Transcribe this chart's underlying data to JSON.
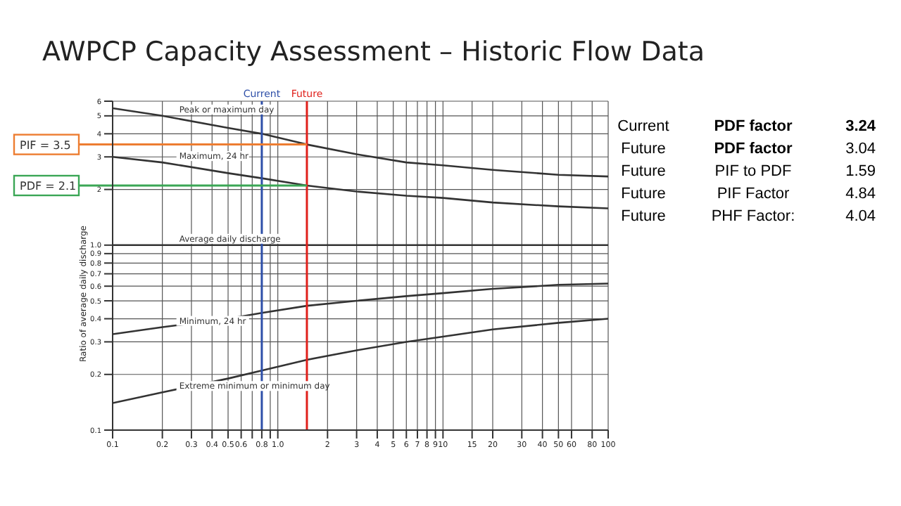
{
  "chart_data": {
    "type": "line",
    "title": "AWPCP Capacity Assessment – Historic Flow Data",
    "ylabel": "Ratio of average daily discharge",
    "log": "xy",
    "grid": true,
    "marker": "none",
    "line_style": "solid",
    "legend": false,
    "x": [
      0.1,
      0.2,
      0.5,
      0.8,
      1.5,
      3,
      6,
      10,
      20,
      50,
      100
    ],
    "series": [
      {
        "name": "Peak or maximum day",
        "color": "#333333",
        "values": [
          5.5,
          5.0,
          4.3,
          4.0,
          3.5,
          3.1,
          2.8,
          2.7,
          2.55,
          2.4,
          2.35
        ]
      },
      {
        "name": "Maximum, 24 hr",
        "color": "#333333",
        "values": [
          3.0,
          2.8,
          2.45,
          2.3,
          2.1,
          1.95,
          1.85,
          1.8,
          1.7,
          1.62,
          1.58
        ]
      },
      {
        "name": "Average daily discharge",
        "color": "#333333",
        "values": [
          1,
          1,
          1,
          1,
          1,
          1,
          1,
          1,
          1,
          1,
          1
        ]
      },
      {
        "name": "Minimum, 24 hr",
        "color": "#333333",
        "values": [
          0.33,
          0.36,
          0.4,
          0.43,
          0.47,
          0.5,
          0.53,
          0.55,
          0.58,
          0.61,
          0.62
        ]
      },
      {
        "name": "Extreme minimum or minimum day",
        "color": "#333333",
        "values": [
          0.14,
          0.16,
          0.19,
          0.21,
          0.24,
          0.27,
          0.3,
          0.32,
          0.35,
          0.38,
          0.4
        ]
      }
    ],
    "xlim": [
      0.1,
      100
    ],
    "xticks": [
      0.1,
      0.2,
      0.3,
      0.4,
      0.5,
      0.6,
      {
        "value": 0.7,
        "label": null
      },
      0.8,
      {
        "value": 0.9,
        "label": null
      },
      {
        "value": 1,
        "label": "1.0"
      },
      2,
      3,
      4,
      5,
      6,
      7,
      8,
      9,
      10,
      15,
      20,
      30,
      40,
      50,
      60,
      80,
      100
    ],
    "ylim": [
      0.1,
      6
    ],
    "yticks": [
      0.1,
      0.2,
      0.3,
      0.4,
      0.5,
      0.6,
      0.7,
      0.8,
      0.9,
      {
        "value": 1,
        "label": "1.0"
      },
      2,
      3,
      4,
      5,
      6
    ],
    "ref_lines": [
      {
        "axis": "x",
        "value": 0.8,
        "label": "Current",
        "color": "#2e4fa8"
      },
      {
        "axis": "x",
        "value": 1.5,
        "label": "Future",
        "color": "#e0201b"
      },
      {
        "axis": "y",
        "value": 3.5,
        "label": "PIF = 3.5",
        "color": "#ed7d31"
      },
      {
        "axis": "y",
        "value": 2.1,
        "label": "PDF = 2.1",
        "color": "#3aa655"
      }
    ],
    "annotations": [
      "Current",
      "PDF factor",
      "3.24",
      "Future",
      "PDF factor",
      "3.04",
      "Future",
      "PIF to PDF",
      "1.59",
      "Future",
      "PIF Factor",
      "4.84",
      "Future",
      "PHF Factor:",
      "4.04"
    ]
  }
}
